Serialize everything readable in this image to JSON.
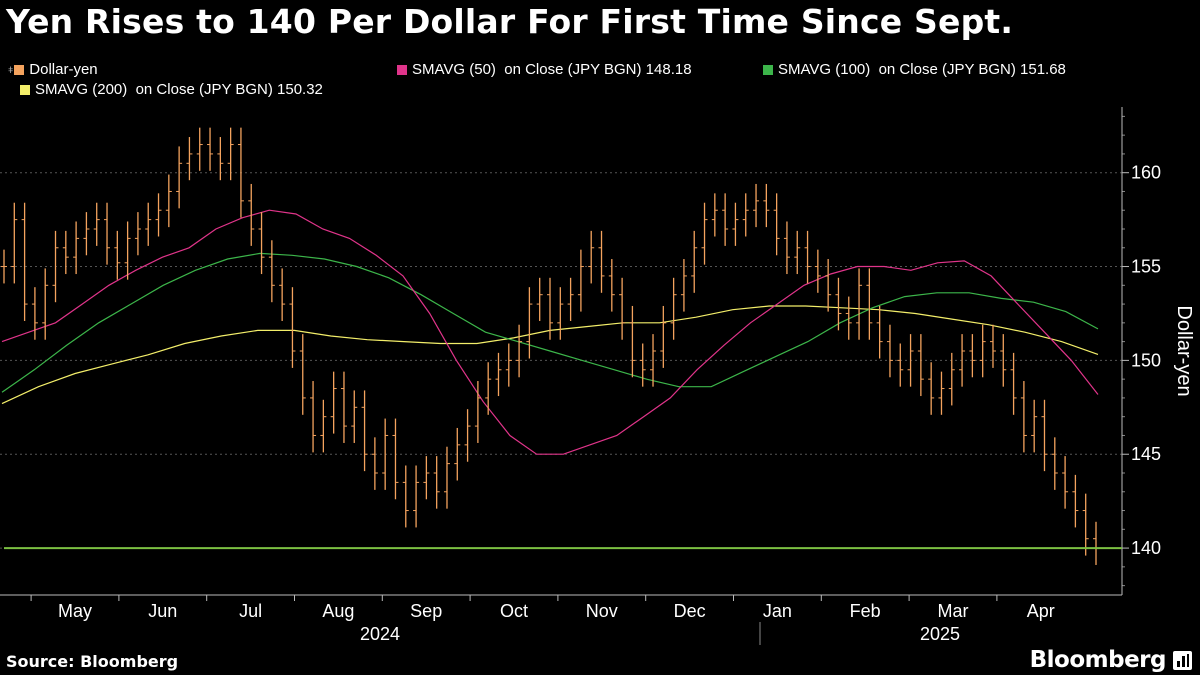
{
  "title": "Yen Rises to 140 Per Dollar For First Time Since Sept.",
  "legend": {
    "prefix_glyph": "ǂ",
    "items": [
      {
        "label": "Dollar-yen",
        "color": "#f4a35e"
      },
      {
        "label": "SMAVG (50)  on Close (JPY BGN) 148.18",
        "color": "#e0348a"
      },
      {
        "label": "SMAVG (100)  on Close (JPY BGN) 151.68",
        "color": "#3cb54a"
      },
      {
        "label": "SMAVG (200)  on Close (JPY BGN) 150.32",
        "color": "#f3ee6a"
      }
    ]
  },
  "source": "Source: Bloomberg",
  "brand": "Bloomberg",
  "chart_data": {
    "type": "line",
    "ylabel": "Dollar-yen",
    "ylim": [
      137.5,
      163.5
    ],
    "yticks": [
      140,
      145,
      150,
      155,
      160
    ],
    "xticks": [
      "May",
      "Jun",
      "Jul",
      "Aug",
      "Sep",
      "Oct",
      "Nov",
      "Dec",
      "Jan",
      "Feb",
      "Mar",
      "Apr"
    ],
    "x_year_labels": [
      "2024",
      "2025"
    ],
    "reference_line": {
      "value": 140,
      "color": "#7bc142"
    },
    "grid": "horizontal dashed",
    "series": [
      {
        "name": "Dollar-yen",
        "color": "#f4a35e",
        "style": "price bars",
        "values": [
          155.0,
          157.5,
          153.0,
          152.0,
          154.0,
          156.0,
          155.5,
          156.5,
          157.0,
          157.5,
          156.0,
          155.2,
          156.5,
          157.0,
          157.5,
          158.0,
          159.0,
          160.5,
          161.0,
          161.5,
          161.0,
          160.5,
          161.5,
          158.5,
          157.0,
          155.5,
          154.0,
          153.0,
          150.5,
          148.0,
          146.0,
          147.0,
          148.5,
          146.5,
          147.5,
          145.0,
          144.0,
          146.0,
          143.5,
          142.0,
          143.5,
          144.0,
          143.0,
          144.5,
          145.5,
          146.5,
          148.0,
          149.0,
          149.5,
          150.0,
          151.0,
          153.0,
          153.5,
          152.0,
          153.0,
          153.5,
          155.0,
          156.0,
          154.5,
          153.5,
          152.0,
          150.0,
          149.5,
          150.5,
          152.0,
          153.5,
          154.5,
          156.0,
          157.5,
          158.0,
          157.0,
          157.5,
          158.0,
          158.5,
          158.0,
          156.5,
          155.5,
          156.0,
          155.0,
          154.5,
          153.5,
          152.5,
          152.0,
          154.0,
          152.0,
          151.0,
          150.0,
          149.5,
          150.5,
          149.0,
          148.0,
          148.5,
          149.5,
          150.5,
          150.0,
          151.0,
          150.5,
          149.5,
          148.0,
          146.0,
          147.0,
          145.0,
          144.0,
          143.0,
          142.0,
          140.5,
          140.0
        ]
      },
      {
        "name": "SMAVG (50)  on Close (JPY BGN)",
        "color": "#e0348a",
        "values": [
          151.0,
          151.5,
          152.0,
          153.0,
          154.0,
          154.8,
          155.5,
          156.0,
          157.0,
          157.6,
          158.0,
          157.8,
          157.0,
          156.5,
          155.6,
          154.5,
          152.5,
          150.0,
          147.8,
          146.0,
          145.0,
          145.0,
          145.5,
          146.0,
          147.0,
          148.0,
          149.5,
          150.8,
          152.0,
          153.0,
          154.0,
          154.6,
          155.0,
          155.0,
          154.8,
          155.2,
          155.3,
          154.5,
          153.0,
          151.5,
          150.0,
          148.18
        ]
      },
      {
        "name": "SMAVG (100)  on Close (JPY BGN)",
        "color": "#3cb54a",
        "values": [
          148.3,
          149.5,
          150.8,
          152.0,
          153.0,
          154.0,
          154.8,
          155.4,
          155.7,
          155.6,
          155.4,
          155.0,
          154.4,
          153.5,
          152.5,
          151.5,
          151.0,
          150.5,
          150.0,
          149.5,
          149.0,
          148.6,
          148.6,
          149.4,
          150.2,
          151.0,
          152.0,
          152.8,
          153.4,
          153.6,
          153.6,
          153.3,
          153.1,
          152.6,
          151.68
        ]
      },
      {
        "name": "SMAVG (200)  on Close (JPY BGN)",
        "color": "#f3ee6a",
        "values": [
          147.7,
          148.6,
          149.3,
          149.8,
          150.3,
          150.9,
          151.3,
          151.6,
          151.6,
          151.3,
          151.1,
          151.0,
          150.9,
          150.9,
          151.2,
          151.6,
          151.8,
          152.0,
          152.0,
          152.3,
          152.7,
          152.9,
          152.9,
          152.8,
          152.7,
          152.5,
          152.2,
          151.9,
          151.5,
          151.0,
          150.32
        ]
      }
    ]
  }
}
